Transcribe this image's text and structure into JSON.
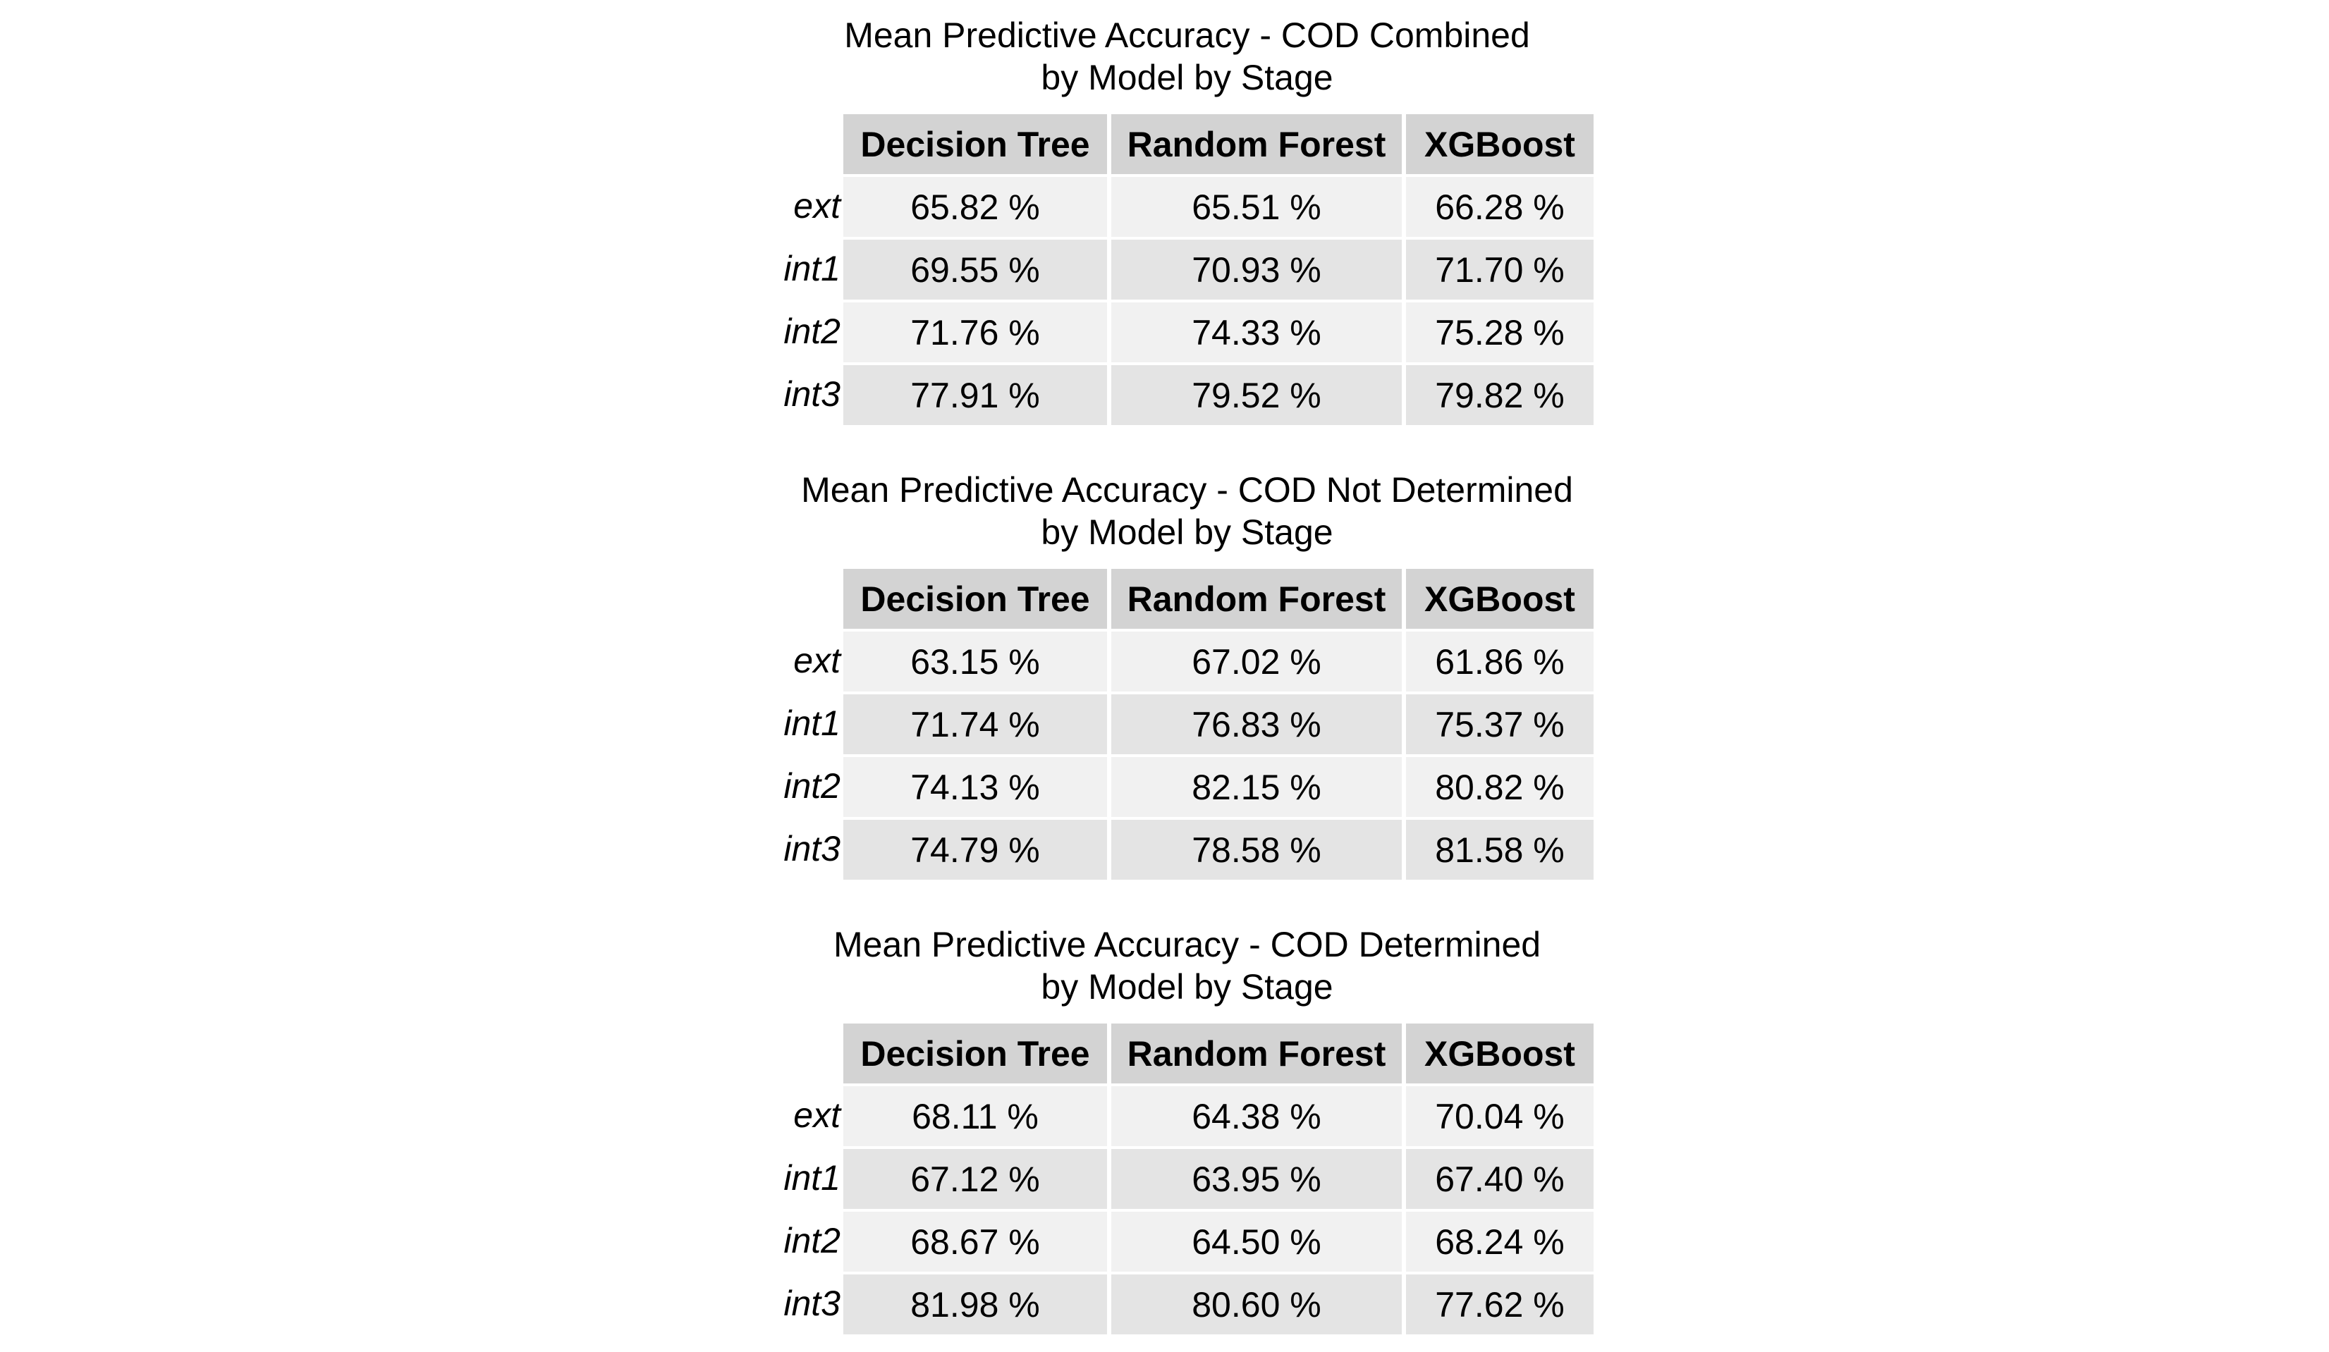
{
  "chart_data": [
    {
      "type": "table",
      "title": "Mean Predictive Accuracy - COD Combined",
      "subtitle": "by Model by Stage",
      "columns": [
        "Decision Tree",
        "Random Forest",
        "XGBoost"
      ],
      "rows": [
        {
          "label": "ext",
          "cells": [
            "65.82 %",
            "65.51 %",
            "66.28 %"
          ]
        },
        {
          "label": "int1",
          "cells": [
            "69.55 %",
            "70.93 %",
            "71.70 %"
          ]
        },
        {
          "label": "int2",
          "cells": [
            "71.76 %",
            "74.33 %",
            "75.28 %"
          ]
        },
        {
          "label": "int3",
          "cells": [
            "77.91 %",
            "79.52 %",
            "79.82 %"
          ]
        }
      ]
    },
    {
      "type": "table",
      "title": "Mean Predictive Accuracy - COD Not Determined",
      "subtitle": "by Model by Stage",
      "columns": [
        "Decision Tree",
        "Random Forest",
        "XGBoost"
      ],
      "rows": [
        {
          "label": "ext",
          "cells": [
            "63.15 %",
            "67.02 %",
            "61.86 %"
          ]
        },
        {
          "label": "int1",
          "cells": [
            "71.74 %",
            "76.83 %",
            "75.37 %"
          ]
        },
        {
          "label": "int2",
          "cells": [
            "74.13 %",
            "82.15 %",
            "80.82 %"
          ]
        },
        {
          "label": "int3",
          "cells": [
            "74.79 %",
            "78.58 %",
            "81.58 %"
          ]
        }
      ]
    },
    {
      "type": "table",
      "title": "Mean Predictive Accuracy - COD Determined",
      "subtitle": "by Model by Stage",
      "columns": [
        "Decision Tree",
        "Random Forest",
        "XGBoost"
      ],
      "rows": [
        {
          "label": "ext",
          "cells": [
            "68.11 %",
            "64.38 %",
            "70.04 %"
          ]
        },
        {
          "label": "int1",
          "cells": [
            "67.12 %",
            "63.95 %",
            "67.40 %"
          ]
        },
        {
          "label": "int2",
          "cells": [
            "68.67 %",
            "64.50 %",
            "68.24 %"
          ]
        },
        {
          "label": "int3",
          "cells": [
            "81.98 %",
            "80.60 %",
            "77.62 %"
          ]
        }
      ]
    }
  ]
}
